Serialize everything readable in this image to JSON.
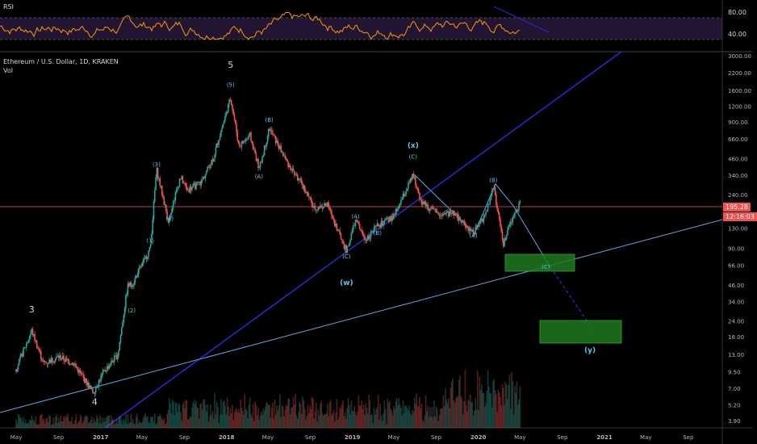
{
  "rsi": {
    "label": "RSI",
    "levels": [
      "80.00",
      "40.00"
    ]
  },
  "header": {
    "symbol": "Ethereum / U.S. Dollar, 1D, KRAKEN",
    "vol_label": "Vol"
  },
  "price_tag": {
    "price": "195.28",
    "countdown": "12:16:03"
  },
  "colors": {
    "background": "#000000",
    "rsi_line": "#ff9800",
    "rsi_band": "#2a1a40",
    "up_candle": "#26a69a",
    "down_candle": "#ef5350",
    "price_line": "#ef5350",
    "trendline_dark": "#2a2ad0",
    "trendline_light": "#5aa9e6",
    "wave_label": "#5ac8e6",
    "target_zone": "#1f7a1f"
  },
  "chart_data": {
    "type": "candlestick",
    "title": "Ethereum / U.S. Dollar, 1D, KRAKEN",
    "scale": "log",
    "y_ticks": [
      "3000.00",
      "2200.00",
      "1600.00",
      "1200.00",
      "900.00",
      "660.00",
      "460.00",
      "340.00",
      "240.00",
      "130.00",
      "90.00",
      "66.00",
      "46.00",
      "34.00",
      "24.00",
      "18.00",
      "13.00",
      "9.50",
      "7.00",
      "5.20",
      "3.90"
    ],
    "x_ticks": [
      "May",
      "Sep",
      "2017",
      "May",
      "Sep",
      "2018",
      "May",
      "Sep",
      "2019",
      "May",
      "Sep",
      "2020",
      "May",
      "Sep",
      "2021",
      "May",
      "Sep"
    ],
    "last_price": 195.28,
    "wave_labels": [
      {
        "text": "3",
        "date": "2016-06-15",
        "price": 28
      },
      {
        "text": "4",
        "date": "2016-12-15",
        "price": 5.2
      },
      {
        "text": "5",
        "date": "2018-01-13",
        "price": 2400
      },
      {
        "text": "(5)",
        "date": "2018-01-13",
        "price": 1700
      },
      {
        "text": "(3)",
        "date": "2017-06-12",
        "price": 400
      },
      {
        "text": "(4)",
        "date": "2017-07-20",
        "price": 150
      },
      {
        "text": "(1)",
        "date": "2017-05-25",
        "price": 100
      },
      {
        "text": "(2)",
        "date": "2017-04-01",
        "price": 28
      },
      {
        "text": "(A)",
        "date": "2018-04-05",
        "price": 320
      },
      {
        "text": "(B)",
        "date": "2018-05-05",
        "price": 900
      },
      {
        "text": "(C)",
        "date": "2018-12-15",
        "price": 75
      },
      {
        "text": "(w)",
        "date": "2018-12-15",
        "price": 46
      },
      {
        "text": "(A)",
        "date": "2019-01-10",
        "price": 155
      },
      {
        "text": "(B)",
        "date": "2019-03-15",
        "price": 115
      },
      {
        "text": "(x)",
        "date": "2019-06-26",
        "price": 560
      },
      {
        "text": "(C)",
        "date": "2019-06-26",
        "price": 460
      },
      {
        "text": "(A)",
        "date": "2019-12-18",
        "price": 110
      },
      {
        "text": "(B)",
        "date": "2020-02-14",
        "price": 300
      },
      {
        "text": "(C)",
        "date": "2020-07-15",
        "price": 62
      },
      {
        "text": "(y)",
        "date": "2020-11-20",
        "price": 13.5
      }
    ]
  }
}
